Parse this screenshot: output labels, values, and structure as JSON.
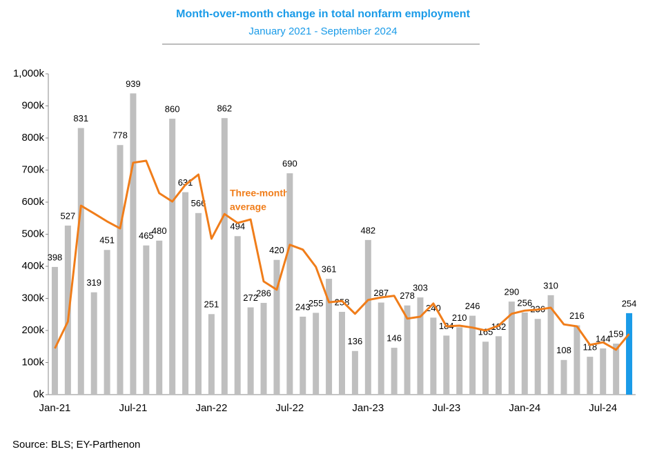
{
  "chart_data": {
    "type": "bar",
    "title": "Month-over-month change in total nonfarm employment",
    "subtitle": "January 2021 - September 2024",
    "source": "Source: BLS; EY-Parthenon",
    "annotation": [
      "Three-month",
      "average"
    ],
    "categories": [
      "Jan-21",
      null,
      null,
      null,
      null,
      null,
      "Jul-21",
      null,
      null,
      null,
      null,
      null,
      "Jan-22",
      null,
      null,
      null,
      null,
      null,
      "Jul-22",
      null,
      null,
      null,
      null,
      null,
      "Jan-23",
      null,
      null,
      null,
      null,
      null,
      "Jul-23",
      null,
      null,
      null,
      null,
      null,
      "Jan-24",
      null,
      null,
      null,
      null,
      null,
      "Jul-24",
      null,
      null
    ],
    "ylim": [
      0,
      1000
    ],
    "yticks": [
      {
        "value": 0,
        "label": "0k"
      },
      {
        "value": 100,
        "label": "100k"
      },
      {
        "value": 200,
        "label": "200k"
      },
      {
        "value": 300,
        "label": "300k"
      },
      {
        "value": 400,
        "label": "400k"
      },
      {
        "value": 500,
        "label": "500k"
      },
      {
        "value": 600,
        "label": "600k"
      },
      {
        "value": 700,
        "label": "700k"
      },
      {
        "value": 800,
        "label": "800k"
      },
      {
        "value": 900,
        "label": "900k"
      },
      {
        "value": 1000,
        "label": "1,000k"
      }
    ],
    "series": [
      {
        "type": "bar",
        "color": "#bfbfbf",
        "highlight_color": "#1a9be8",
        "values": [
          398,
          527,
          831,
          319,
          451,
          778,
          939,
          465,
          480,
          860,
          631,
          566,
          251,
          862,
          494,
          272,
          286,
          420,
          690,
          243,
          255,
          361,
          258,
          136,
          482,
          287,
          146,
          278,
          303,
          240,
          184,
          210,
          246,
          165,
          182,
          290,
          256,
          236,
          310,
          108,
          216,
          118,
          144,
          159,
          254
        ]
      },
      {
        "type": "line",
        "color": "#f07d1a",
        "values": [
          144,
          228,
          589,
          565,
          540,
          518,
          723,
          729,
          628,
          602,
          654,
          686,
          486,
          563,
          535,
          546,
          353,
          327,
          467,
          452,
          398,
          288,
          292,
          252,
          295,
          303,
          308,
          237,
          243,
          284,
          213,
          215,
          209,
          200,
          215,
          252,
          262,
          265,
          271,
          219,
          213,
          155,
          163,
          140,
          189
        ]
      }
    ]
  }
}
